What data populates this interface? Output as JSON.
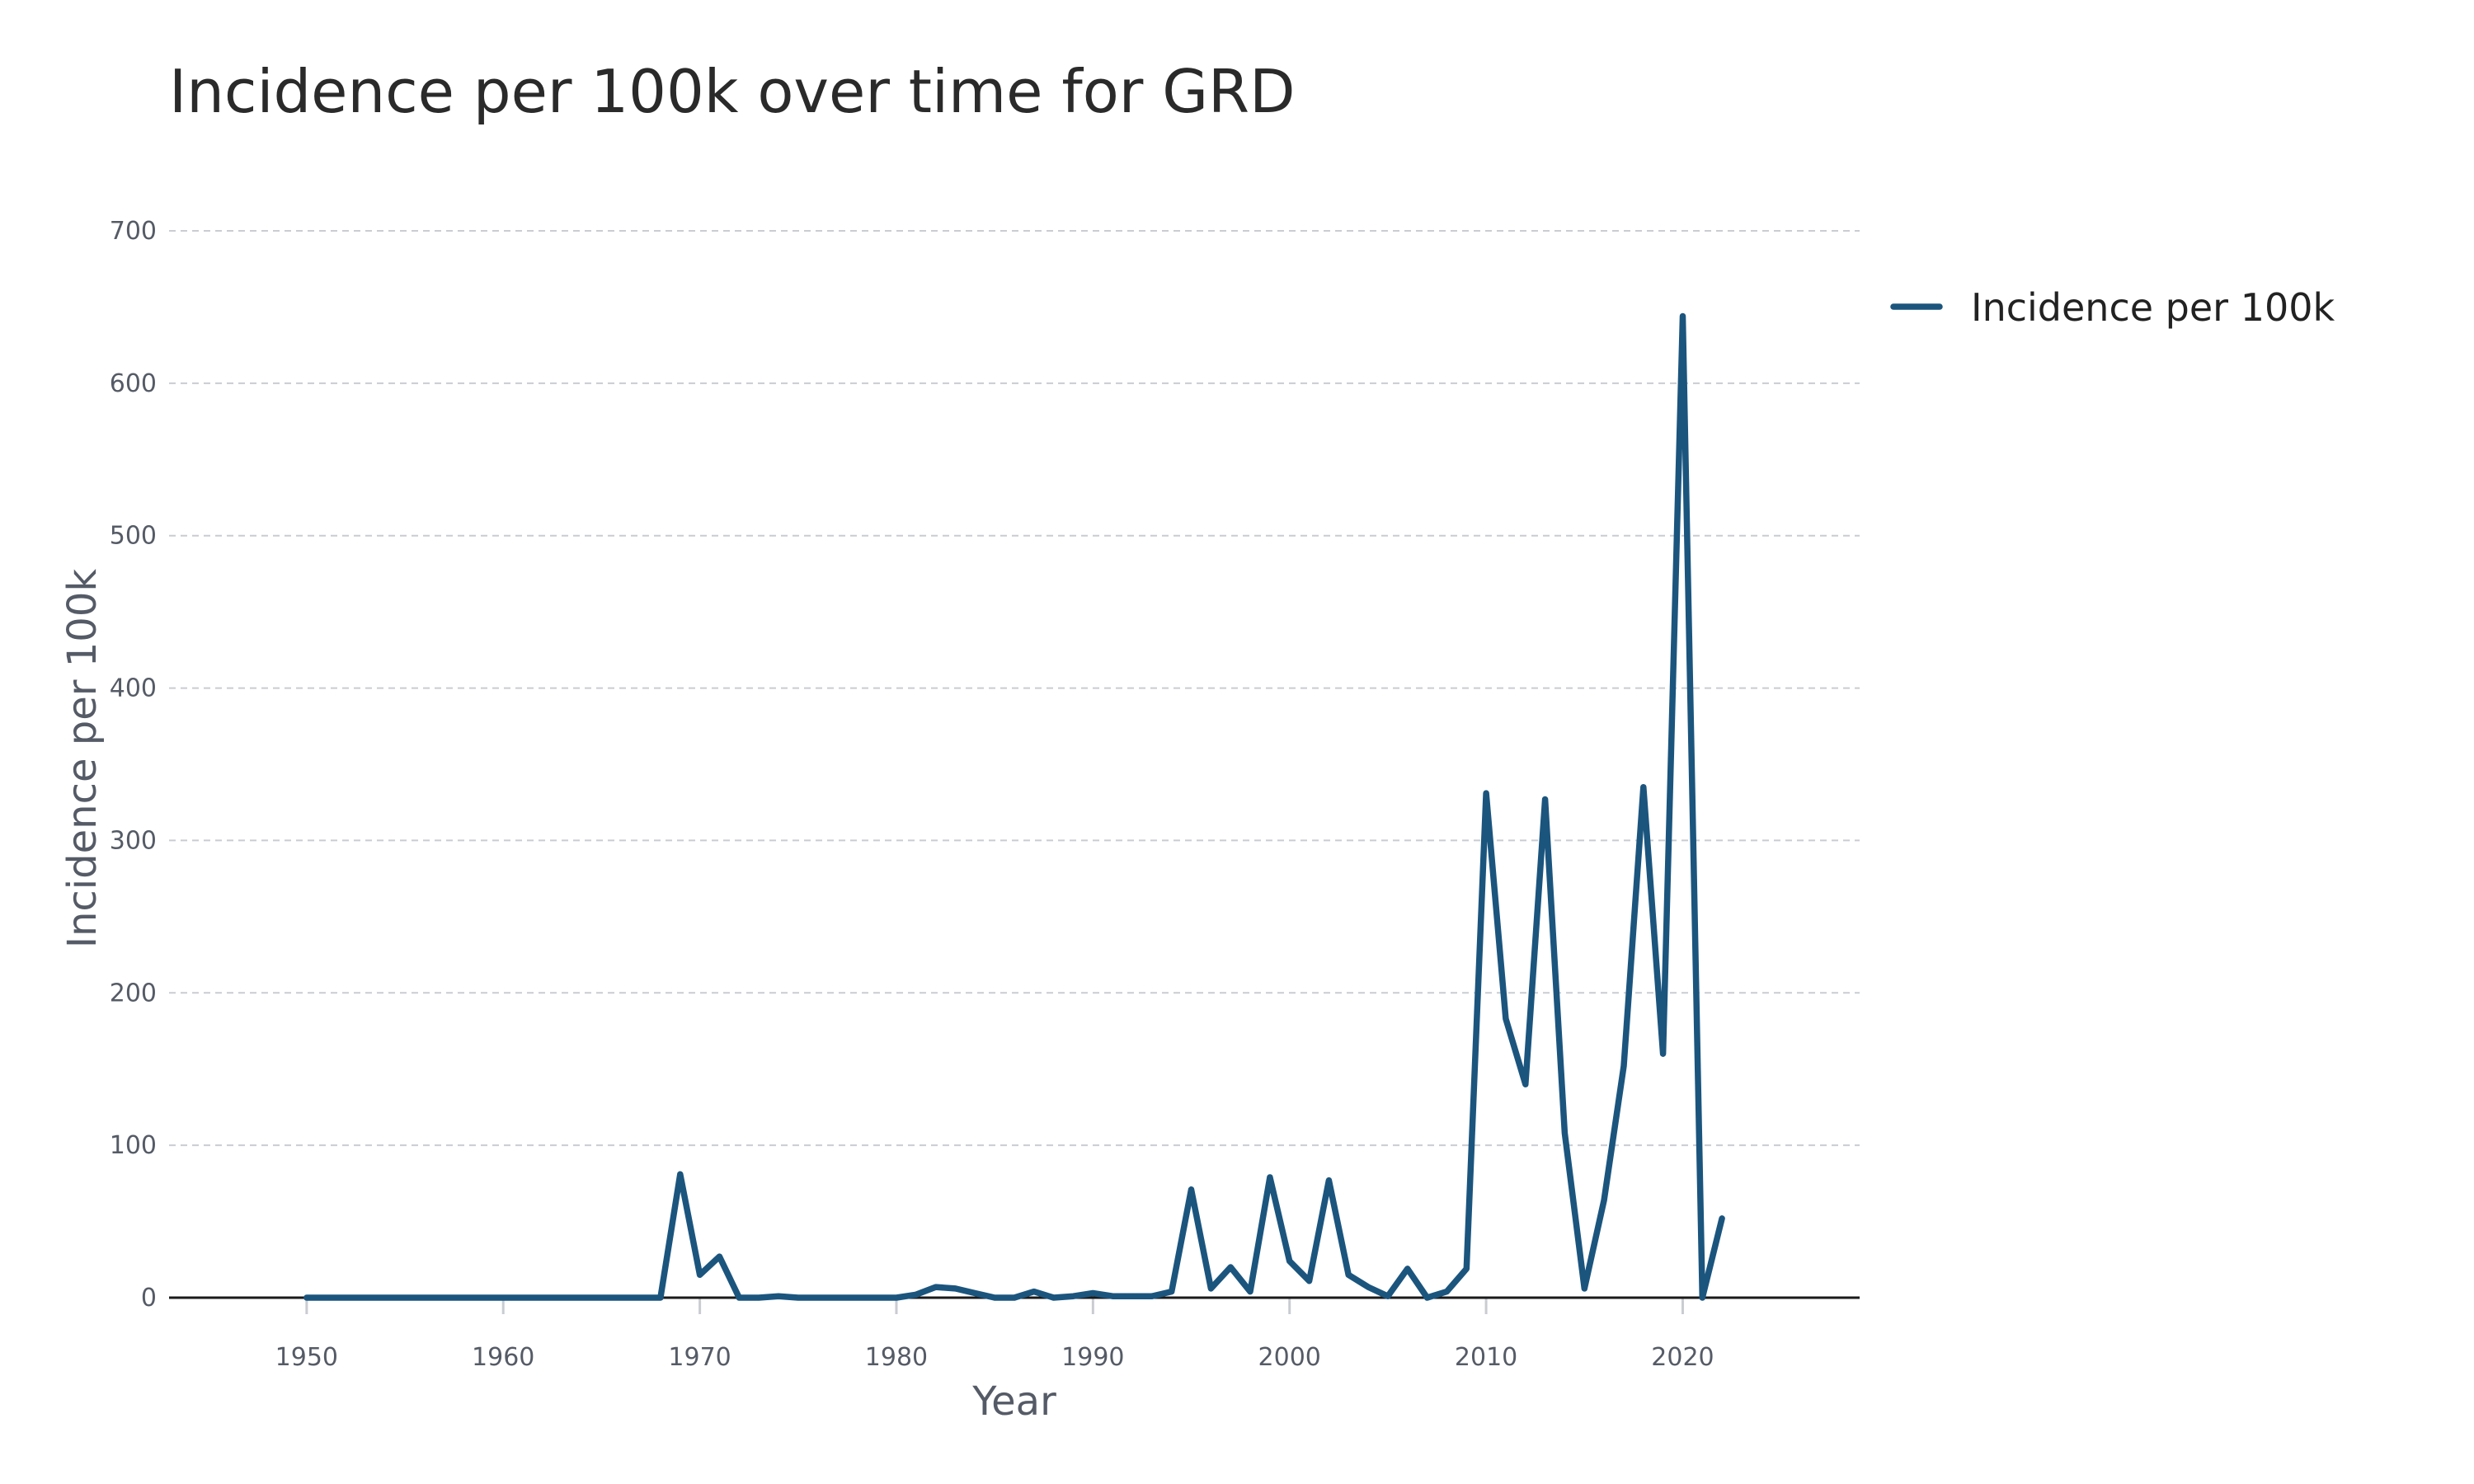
{
  "chart_data": {
    "type": "line",
    "title": "Incidence per 100k over time for GRD",
    "xlabel": "Year",
    "ylabel": "Incidence per 100k",
    "xlim": [
      1943,
      2029
    ],
    "ylim": [
      0,
      700
    ],
    "x_ticks": [
      1950,
      1960,
      1970,
      1980,
      1990,
      2000,
      2010,
      2020
    ],
    "y_ticks": [
      0,
      100,
      200,
      300,
      400,
      500,
      600,
      700
    ],
    "grid": true,
    "legend_position": "top-right",
    "colors": {
      "series": "#1b557e"
    },
    "series": [
      {
        "name": "Incidence per 100k",
        "x": [
          1950,
          1951,
          1952,
          1953,
          1954,
          1955,
          1956,
          1957,
          1958,
          1959,
          1960,
          1961,
          1962,
          1963,
          1964,
          1965,
          1966,
          1967,
          1968,
          1969,
          1970,
          1971,
          1972,
          1973,
          1974,
          1975,
          1976,
          1977,
          1978,
          1979,
          1980,
          1981,
          1982,
          1983,
          1984,
          1985,
          1986,
          1987,
          1988,
          1989,
          1990,
          1991,
          1992,
          1993,
          1994,
          1995,
          1996,
          1997,
          1998,
          1999,
          2000,
          2001,
          2002,
          2003,
          2004,
          2005,
          2006,
          2007,
          2008,
          2009,
          2010,
          2011,
          2012,
          2013,
          2014,
          2015,
          2016,
          2017,
          2018,
          2019,
          2020,
          2021,
          2022
        ],
        "y": [
          0,
          0,
          0,
          0,
          0,
          0,
          0,
          0,
          0,
          0,
          0,
          0,
          0,
          0,
          0,
          0,
          0,
          0,
          0,
          81,
          15,
          27,
          0,
          0,
          1,
          0,
          0,
          0,
          0,
          0,
          0,
          2,
          7,
          6,
          3,
          0,
          0,
          4,
          0,
          1,
          3,
          1,
          1,
          1,
          4,
          71,
          6,
          20,
          4,
          79,
          24,
          11,
          77,
          15,
          7,
          1,
          19,
          0,
          4,
          19,
          331,
          183,
          140,
          327,
          108,
          6,
          64,
          152,
          335,
          160,
          644,
          0,
          52
        ]
      }
    ]
  }
}
